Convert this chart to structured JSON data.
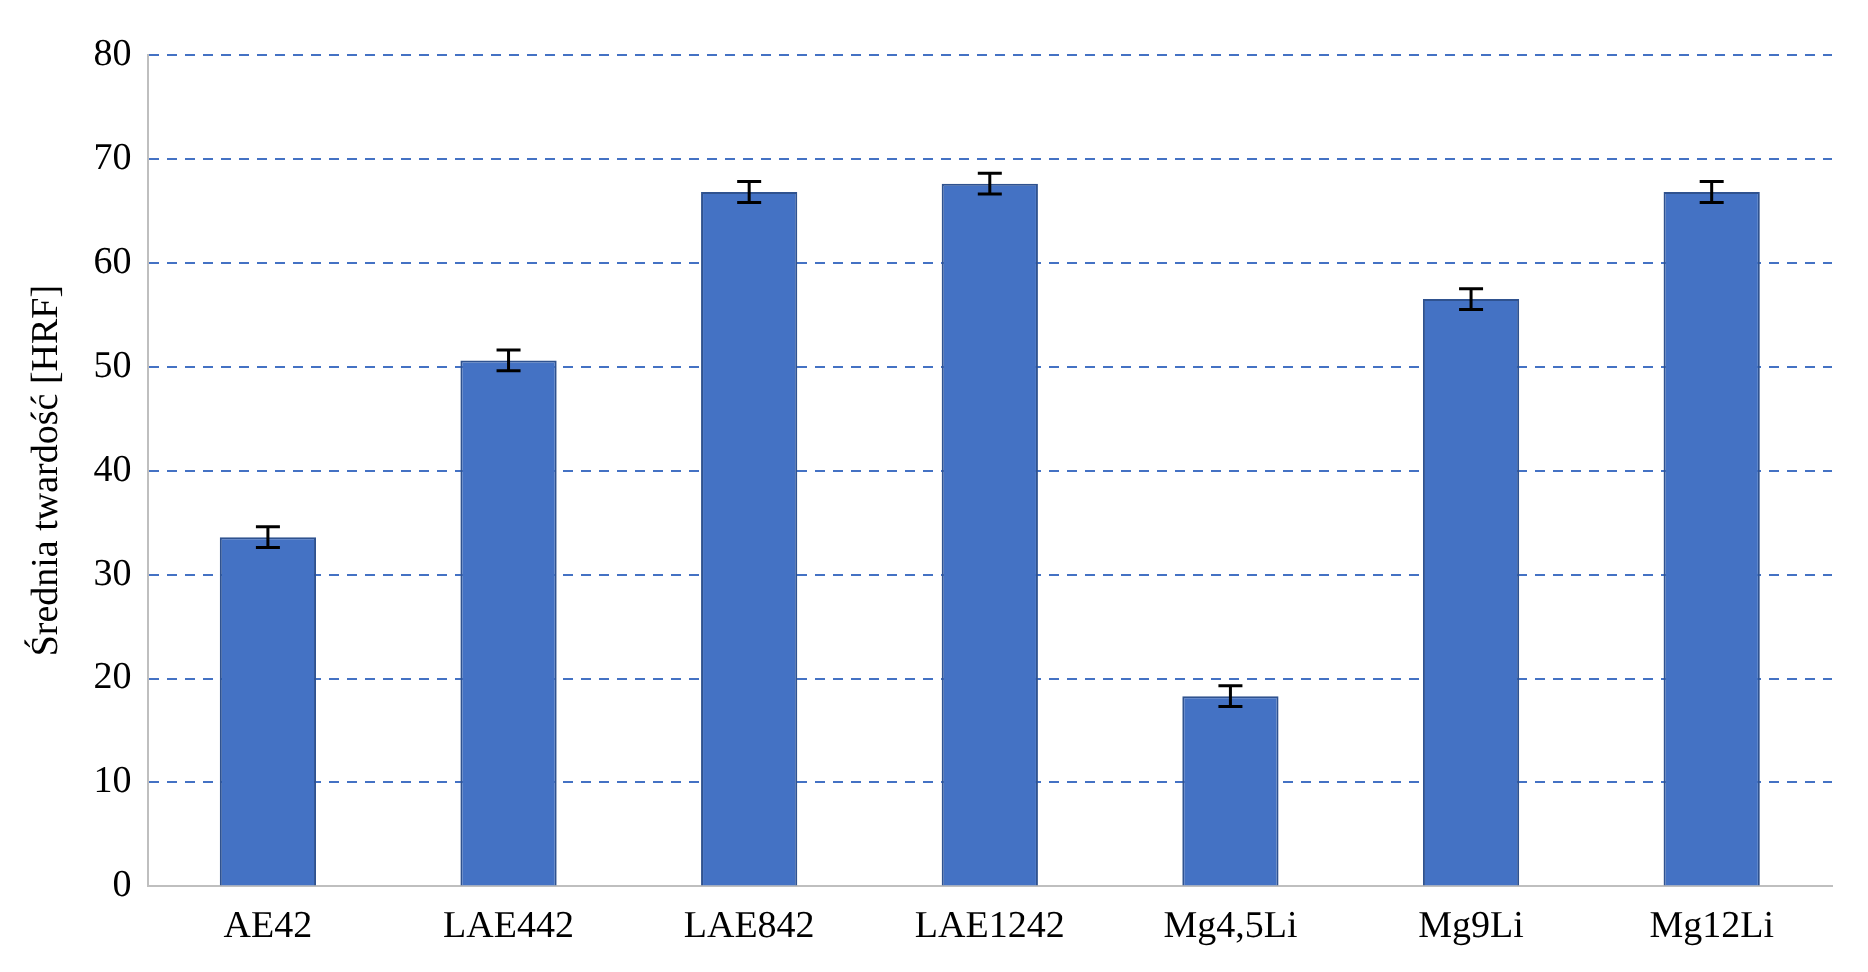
{
  "chart_data": {
    "type": "bar",
    "ylabel": "Średnia twardość [HRF]",
    "categories": [
      "AE42",
      "LAE442",
      "LAE842",
      "LAE1242",
      "Mg4,5Li",
      "Mg9Li",
      "Mg12Li"
    ],
    "values": [
      33.6,
      50.6,
      66.8,
      67.6,
      18.3,
      56.5,
      66.8
    ],
    "errors": [
      1,
      1,
      1,
      1,
      1,
      1,
      1
    ],
    "color": "#4472c4",
    "ylim": [
      0,
      80
    ],
    "yticks": [
      0,
      10,
      20,
      30,
      40,
      50,
      60,
      70,
      80
    ],
    "grid": "y",
    "legend": false
  }
}
